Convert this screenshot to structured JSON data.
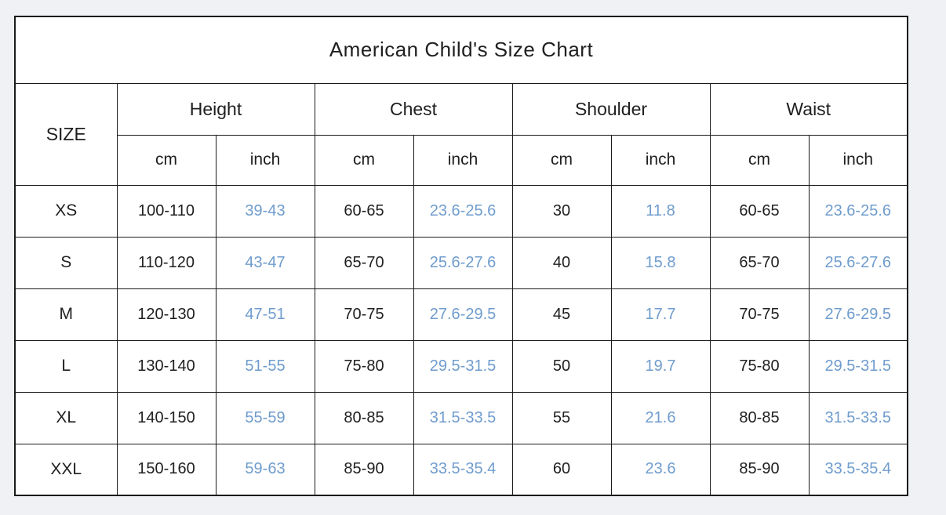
{
  "title": "American Child's Size Chart",
  "headers": {
    "size": "SIZE",
    "groups": [
      "Height",
      "Chest",
      "Shoulder",
      "Waist"
    ],
    "units": [
      "cm",
      "inch",
      "cm",
      "inch",
      "cm",
      "inch",
      "cm",
      "inch"
    ]
  },
  "rows": [
    {
      "size": "XS",
      "values": [
        "100-110",
        "39-43",
        "60-65",
        "23.6-25.6",
        "30",
        "11.8",
        "60-65",
        "23.6-25.6"
      ]
    },
    {
      "size": "S",
      "values": [
        "110-120",
        "43-47",
        "65-70",
        "25.6-27.6",
        "40",
        "15.8",
        "65-70",
        "25.6-27.6"
      ]
    },
    {
      "size": "M",
      "values": [
        "120-130",
        "47-51",
        "70-75",
        "27.6-29.5",
        "45",
        "17.7",
        "70-75",
        "27.6-29.5"
      ]
    },
    {
      "size": "L",
      "values": [
        "130-140",
        "51-55",
        "75-80",
        "29.5-31.5",
        "50",
        "19.7",
        "75-80",
        "29.5-31.5"
      ]
    },
    {
      "size": "XL",
      "values": [
        "140-150",
        "55-59",
        "80-85",
        "31.5-33.5",
        "55",
        "21.6",
        "80-85",
        "31.5-33.5"
      ]
    },
    {
      "size": "XXL",
      "values": [
        "150-160",
        "59-63",
        "85-90",
        "33.5-35.4",
        "60",
        "23.6",
        "85-90",
        "33.5-35.4"
      ]
    }
  ],
  "colors": {
    "inch_text": "#6f9ccd",
    "black_text": "#1f1f1f",
    "border": "#1a1a1a",
    "page_bg": "#f0f1f5",
    "table_bg": "#ffffff"
  },
  "chart_data": {
    "type": "table",
    "title": "American Child's Size Chart",
    "columns": [
      "SIZE",
      "Height cm",
      "Height inch",
      "Chest cm",
      "Chest inch",
      "Shoulder cm",
      "Shoulder inch",
      "Waist cm",
      "Waist inch"
    ],
    "rows": [
      [
        "XS",
        "100-110",
        "39-43",
        "60-65",
        "23.6-25.6",
        "30",
        "11.8",
        "60-65",
        "23.6-25.6"
      ],
      [
        "S",
        "110-120",
        "43-47",
        "65-70",
        "25.6-27.6",
        "40",
        "15.8",
        "65-70",
        "25.6-27.6"
      ],
      [
        "M",
        "120-130",
        "47-51",
        "70-75",
        "27.6-29.5",
        "45",
        "17.7",
        "70-75",
        "27.6-29.5"
      ],
      [
        "L",
        "130-140",
        "51-55",
        "75-80",
        "29.5-31.5",
        "50",
        "19.7",
        "75-80",
        "29.5-31.5"
      ],
      [
        "XL",
        "140-150",
        "55-59",
        "80-85",
        "31.5-33.5",
        "55",
        "21.6",
        "80-85",
        "31.5-33.5"
      ],
      [
        "XXL",
        "150-160",
        "59-63",
        "85-90",
        "33.5-35.4",
        "60",
        "23.6",
        "85-90",
        "33.5-35.4"
      ]
    ]
  }
}
